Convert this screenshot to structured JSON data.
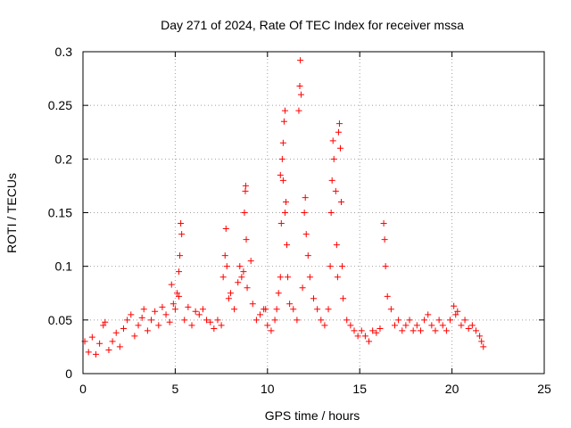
{
  "chart_data": {
    "type": "scatter",
    "title": "Day 271 of 2024, Rate Of TEC Index for receiver mssa",
    "xlabel": "GPS time / hours",
    "ylabel": "ROTI / TECUs",
    "xlim": [
      0,
      25
    ],
    "ylim": [
      0,
      0.3
    ],
    "xticks": [
      0,
      5,
      10,
      15,
      20,
      25
    ],
    "xtick_labels": [
      "0",
      "5",
      "10",
      "15",
      "20",
      "25"
    ],
    "yticks": [
      0,
      0.05,
      0.1,
      0.15,
      0.2,
      0.25,
      0.3
    ],
    "ytick_labels": [
      "0",
      "0.05",
      "0.1",
      "0.15",
      "0.2",
      "0.25",
      "0.3"
    ],
    "grid": true,
    "marker": "+",
    "color": "#ff0000",
    "series": [
      {
        "name": "ROTI",
        "points": [
          [
            0.1,
            0.03
          ],
          [
            0.3,
            0.02
          ],
          [
            0.5,
            0.034
          ],
          [
            0.7,
            0.018
          ],
          [
            0.9,
            0.028
          ],
          [
            1.1,
            0.045
          ],
          [
            1.2,
            0.048
          ],
          [
            1.4,
            0.022
          ],
          [
            1.6,
            0.03
          ],
          [
            1.8,
            0.038
          ],
          [
            2.0,
            0.025
          ],
          [
            2.2,
            0.042
          ],
          [
            2.4,
            0.05
          ],
          [
            2.6,
            0.055
          ],
          [
            2.8,
            0.035
          ],
          [
            3.0,
            0.045
          ],
          [
            3.2,
            0.052
          ],
          [
            3.3,
            0.06
          ],
          [
            3.5,
            0.04
          ],
          [
            3.7,
            0.05
          ],
          [
            3.9,
            0.058
          ],
          [
            4.1,
            0.045
          ],
          [
            4.3,
            0.062
          ],
          [
            4.5,
            0.055
          ],
          [
            4.7,
            0.048
          ],
          [
            4.8,
            0.083
          ],
          [
            4.9,
            0.065
          ],
          [
            5.0,
            0.06
          ],
          [
            5.1,
            0.075
          ],
          [
            5.2,
            0.095
          ],
          [
            5.25,
            0.11
          ],
          [
            5.3,
            0.14
          ],
          [
            5.35,
            0.13
          ],
          [
            5.2,
            0.072
          ],
          [
            5.5,
            0.05
          ],
          [
            5.7,
            0.062
          ],
          [
            5.9,
            0.045
          ],
          [
            6.1,
            0.058
          ],
          [
            6.3,
            0.055
          ],
          [
            6.5,
            0.06
          ],
          [
            6.7,
            0.05
          ],
          [
            6.9,
            0.048
          ],
          [
            7.1,
            0.042
          ],
          [
            7.3,
            0.05
          ],
          [
            7.5,
            0.045
          ],
          [
            7.6,
            0.09
          ],
          [
            7.7,
            0.11
          ],
          [
            7.75,
            0.135
          ],
          [
            7.8,
            0.1
          ],
          [
            7.9,
            0.07
          ],
          [
            8.0,
            0.075
          ],
          [
            8.2,
            0.06
          ],
          [
            8.4,
            0.085
          ],
          [
            8.5,
            0.1
          ],
          [
            8.6,
            0.09
          ],
          [
            8.7,
            0.095
          ],
          [
            8.75,
            0.15
          ],
          [
            8.8,
            0.17
          ],
          [
            8.82,
            0.175
          ],
          [
            8.85,
            0.125
          ],
          [
            8.9,
            0.08
          ],
          [
            9.1,
            0.105
          ],
          [
            9.2,
            0.065
          ],
          [
            9.4,
            0.05
          ],
          [
            9.6,
            0.055
          ],
          [
            9.8,
            0.06
          ],
          [
            9.9,
            0.06
          ],
          [
            10.0,
            0.045
          ],
          [
            10.2,
            0.04
          ],
          [
            10.4,
            0.05
          ],
          [
            10.5,
            0.06
          ],
          [
            10.6,
            0.075
          ],
          [
            10.7,
            0.09
          ],
          [
            10.75,
            0.14
          ],
          [
            10.8,
            0.2
          ],
          [
            10.85,
            0.215
          ],
          [
            10.9,
            0.235
          ],
          [
            10.95,
            0.245
          ],
          [
            11.0,
            0.16
          ],
          [
            11.05,
            0.12
          ],
          [
            10.7,
            0.185
          ],
          [
            10.85,
            0.18
          ],
          [
            10.95,
            0.15
          ],
          [
            11.1,
            0.09
          ],
          [
            11.2,
            0.065
          ],
          [
            11.4,
            0.06
          ],
          [
            11.6,
            0.05
          ],
          [
            11.7,
            0.245
          ],
          [
            11.75,
            0.268
          ],
          [
            11.78,
            0.292
          ],
          [
            11.82,
            0.26
          ],
          [
            11.9,
            0.08
          ],
          [
            12.0,
            0.15
          ],
          [
            12.05,
            0.164
          ],
          [
            12.1,
            0.13
          ],
          [
            12.2,
            0.11
          ],
          [
            12.3,
            0.09
          ],
          [
            12.5,
            0.07
          ],
          [
            12.7,
            0.06
          ],
          [
            12.9,
            0.05
          ],
          [
            13.1,
            0.045
          ],
          [
            13.3,
            0.06
          ],
          [
            13.4,
            0.1
          ],
          [
            13.45,
            0.15
          ],
          [
            13.5,
            0.18
          ],
          [
            13.55,
            0.217
          ],
          [
            13.6,
            0.2
          ],
          [
            13.7,
            0.17
          ],
          [
            13.75,
            0.12
          ],
          [
            13.8,
            0.09
          ],
          [
            13.85,
            0.225
          ],
          [
            13.9,
            0.233
          ],
          [
            13.95,
            0.21
          ],
          [
            14.0,
            0.16
          ],
          [
            14.05,
            0.1
          ],
          [
            14.1,
            0.07
          ],
          [
            14.3,
            0.05
          ],
          [
            14.5,
            0.045
          ],
          [
            14.7,
            0.04
          ],
          [
            14.9,
            0.035
          ],
          [
            15.1,
            0.04
          ],
          [
            15.3,
            0.035
          ],
          [
            15.5,
            0.03
          ],
          [
            15.7,
            0.04
          ],
          [
            15.9,
            0.038
          ],
          [
            16.1,
            0.042
          ],
          [
            16.3,
            0.14
          ],
          [
            16.35,
            0.125
          ],
          [
            16.4,
            0.1
          ],
          [
            16.5,
            0.072
          ],
          [
            16.7,
            0.06
          ],
          [
            16.9,
            0.045
          ],
          [
            17.1,
            0.05
          ],
          [
            17.3,
            0.04
          ],
          [
            17.5,
            0.045
          ],
          [
            17.7,
            0.05
          ],
          [
            17.9,
            0.04
          ],
          [
            18.1,
            0.045
          ],
          [
            18.3,
            0.04
          ],
          [
            18.5,
            0.05
          ],
          [
            18.7,
            0.055
          ],
          [
            18.9,
            0.045
          ],
          [
            19.1,
            0.04
          ],
          [
            19.3,
            0.05
          ],
          [
            19.5,
            0.045
          ],
          [
            19.7,
            0.04
          ],
          [
            19.9,
            0.05
          ],
          [
            20.1,
            0.063
          ],
          [
            20.2,
            0.055
          ],
          [
            20.3,
            0.058
          ],
          [
            20.5,
            0.045
          ],
          [
            20.7,
            0.05
          ],
          [
            20.9,
            0.042
          ],
          [
            21.1,
            0.045
          ],
          [
            21.3,
            0.04
          ],
          [
            21.5,
            0.035
          ],
          [
            21.6,
            0.03
          ],
          [
            21.7,
            0.025
          ]
        ]
      }
    ]
  }
}
